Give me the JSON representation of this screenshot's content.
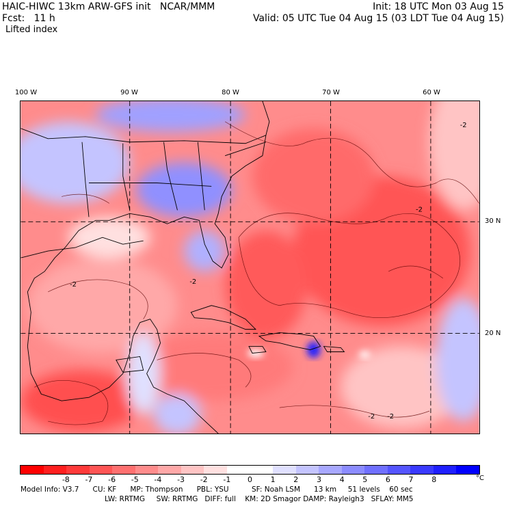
{
  "header": {
    "line1_left": "HAIC-HIWC 13km ARW-GFS init   NCAR/MMM",
    "line2_left": "Fcst:   11 h",
    "line1_right": "Init: 18 UTC Mon 03 Aug 15",
    "line2_right": "Valid: 05 UTC Tue 04 Aug 15 (03 LDT Tue 04 Aug 15)",
    "field": "Lifted index"
  },
  "map": {
    "lon_labels": [
      "100 W",
      "90 W",
      "80 W",
      "70 W",
      "60 W"
    ],
    "lat_labels": [
      "30 N",
      "20 N"
    ],
    "contour_label": "-2"
  },
  "colorbar": {
    "ticks": [
      "-8",
      "-7",
      "-6",
      "-5",
      "-4",
      "-3",
      "-2",
      "-1",
      "0",
      "1",
      "2",
      "3",
      "4",
      "5",
      "6",
      "7",
      "8"
    ],
    "unit": "°C",
    "colors": [
      "#ff0000",
      "#ff1f1f",
      "#ff3a3a",
      "#ff5555",
      "#ff7070",
      "#ff8c8c",
      "#ffa8a8",
      "#ffc4c4",
      "#ffe0e0",
      "#ffffff",
      "#ffffff",
      "#e0e0ff",
      "#c4c4ff",
      "#a8a8ff",
      "#8c8cff",
      "#7070ff",
      "#5555ff",
      "#3a3aff",
      "#1f1fff",
      "#0000ff"
    ]
  },
  "footer": {
    "line1": "Model Info: V3.7      CU: KF      MP: Thompson      PBL: YSU          SF: Noah LSM      13 km     51 levels    60 sec",
    "line2": "LW: RRTMG     SW: RRTMG   DIFF: full    KM: 2D Smagor DAMP: Rayleigh3   SFLAY: MM5"
  }
}
